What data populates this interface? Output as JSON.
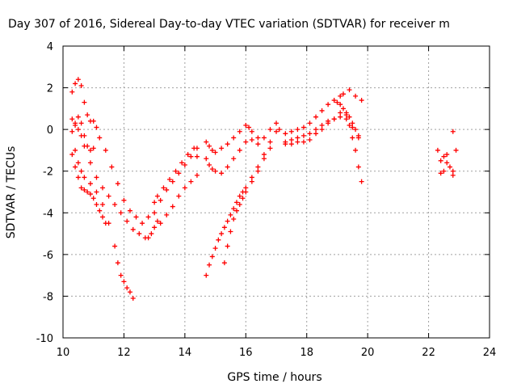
{
  "chart_data": {
    "type": "scatter",
    "title": "Day 307 of 2016, Sidereal Day-to-day VTEC variation (SDTVAR) for receiver m",
    "xlabel": "GPS time / hours",
    "ylabel": "SDTVAR / TECUs",
    "xlim": [
      10,
      24
    ],
    "ylim": [
      -10,
      4
    ],
    "xticks": [
      10,
      12,
      14,
      16,
      18,
      20,
      22,
      24
    ],
    "yticks": [
      -10,
      -8,
      -6,
      -4,
      -2,
      0,
      2,
      4
    ],
    "xtick_labels": [
      "10",
      "12",
      "14",
      "16",
      "18",
      "20",
      "22",
      "24"
    ],
    "ytick_labels": [
      "-10",
      "-8",
      "-6",
      "-4",
      "-2",
      "0",
      "2",
      "4"
    ],
    "grid": true,
    "legend": "none",
    "marker": "+",
    "color": "#ff0000",
    "series": [
      {
        "x": [
          10.3,
          10.4,
          10.5,
          10.6,
          10.7,
          10.8,
          10.9,
          11.0,
          11.1,
          11.2,
          11.4,
          11.6,
          11.8,
          12.0,
          12.2,
          12.4,
          12.6,
          12.8,
          13.0
        ],
        "y": [
          1.8,
          2.2,
          2.4,
          2.1,
          1.3,
          0.7,
          0.4,
          0.4,
          0.1,
          -0.4,
          -1.0,
          -1.8,
          -2.6,
          -3.4,
          -3.9,
          -4.2,
          -4.5,
          -4.2,
          -3.5
        ]
      },
      {
        "x": [
          10.3,
          10.4,
          10.5,
          10.6,
          10.7,
          10.9,
          11.1,
          11.3,
          11.5,
          11.7,
          11.9,
          12.1,
          12.3,
          12.5,
          12.7,
          12.8,
          12.9,
          13.0,
          13.1
        ],
        "y": [
          0.5,
          0.2,
          0.0,
          -0.3,
          -0.8,
          -1.6,
          -2.3,
          -2.8,
          -3.2,
          -3.6,
          -4.0,
          -4.4,
          -4.8,
          -5.0,
          -5.2,
          -5.2,
          -5.0,
          -4.7,
          -4.4
        ]
      },
      {
        "x": [
          10.3,
          10.4,
          10.5,
          10.6,
          10.7,
          10.8,
          10.9,
          11.0,
          11.1,
          11.2,
          11.3,
          11.4
        ],
        "y": [
          -1.2,
          -1.8,
          -2.3,
          -2.8,
          -2.9,
          -3.0,
          -3.1,
          -3.3,
          -3.6,
          -3.9,
          -4.2,
          -4.5
        ]
      },
      {
        "x": [
          10.4,
          10.5,
          10.6,
          10.7,
          10.9,
          11.1,
          11.3,
          11.5,
          11.7,
          11.8,
          11.9,
          12.0,
          12.1,
          12.2,
          12.3
        ],
        "y": [
          -1.0,
          -1.6,
          -2.0,
          -2.3,
          -2.6,
          -3.0,
          -3.6,
          -4.5,
          -5.6,
          -6.4,
          -7.0,
          -7.3,
          -7.6,
          -7.8,
          -8.1
        ]
      },
      {
        "x": [
          10.3,
          10.4,
          10.5,
          10.6,
          10.7,
          10.8,
          10.9,
          11.0
        ],
        "y": [
          -0.1,
          0.3,
          0.6,
          0.3,
          -0.3,
          -0.8,
          -1.0,
          -0.9
        ]
      },
      {
        "x": [
          13.0,
          13.2,
          13.4,
          13.6,
          13.8,
          14.0,
          14.2,
          14.4
        ],
        "y": [
          -4.0,
          -3.4,
          -2.9,
          -2.5,
          -2.1,
          -1.7,
          -1.3,
          -0.9
        ]
      },
      {
        "x": [
          13.1,
          13.3,
          13.5,
          13.7,
          13.9,
          14.1,
          14.3,
          14.4
        ],
        "y": [
          -3.2,
          -2.8,
          -2.4,
          -2.0,
          -1.6,
          -1.2,
          -0.9,
          -1.3
        ]
      },
      {
        "x": [
          13.2,
          13.4,
          13.6,
          13.8,
          14.0,
          14.2,
          14.4
        ],
        "y": [
          -4.5,
          -4.1,
          -3.7,
          -3.2,
          -2.8,
          -2.5,
          -2.2
        ]
      },
      {
        "x": [
          14.7,
          14.8,
          14.9,
          15.0,
          15.1,
          15.2,
          15.3,
          15.4,
          15.5,
          15.6,
          15.7,
          15.8,
          15.9,
          16.0,
          16.2,
          16.4,
          16.6,
          16.8,
          17.0
        ],
        "y": [
          -7.0,
          -6.5,
          -6.1,
          -5.7,
          -5.3,
          -5.0,
          -4.7,
          -4.4,
          -4.1,
          -3.8,
          -3.5,
          -3.2,
          -3.0,
          -2.8,
          -2.3,
          -1.8,
          -1.2,
          -0.6,
          -0.1
        ]
      },
      {
        "x": [
          15.3,
          15.4,
          15.5,
          15.6,
          15.7,
          15.8,
          15.9,
          16.0,
          16.2,
          16.4,
          16.6,
          16.8
        ],
        "y": [
          -6.4,
          -5.6,
          -4.9,
          -4.3,
          -3.9,
          -3.6,
          -3.3,
          -3.0,
          -2.5,
          -2.0,
          -1.4,
          -0.9
        ]
      },
      {
        "x": [
          14.7,
          14.8,
          14.9,
          15.0,
          15.2,
          15.4,
          15.6,
          15.8,
          16.0,
          16.2,
          16.4,
          16.6,
          16.8,
          17.0
        ],
        "y": [
          -1.4,
          -1.7,
          -1.9,
          -2.0,
          -2.1,
          -1.8,
          -1.4,
          -1.0,
          -0.6,
          -0.5,
          -0.7,
          -0.4,
          0.0,
          0.3
        ]
      },
      {
        "x": [
          14.7,
          14.8,
          14.9,
          15.0,
          15.2,
          15.4,
          15.6,
          15.8,
          16.0,
          16.1,
          16.2,
          16.4
        ],
        "y": [
          -0.6,
          -0.8,
          -1.0,
          -1.1,
          -0.9,
          -0.7,
          -0.4,
          -0.1,
          0.2,
          0.1,
          -0.1,
          -0.4
        ]
      },
      {
        "x": [
          17.1,
          17.3,
          17.5,
          17.7,
          17.9,
          18.1,
          18.3,
          18.5,
          18.7,
          18.9,
          19.1,
          19.2,
          19.4,
          19.6,
          19.8
        ],
        "y": [
          0.0,
          -0.2,
          -0.1,
          0.0,
          0.1,
          0.3,
          0.6,
          0.9,
          1.2,
          1.4,
          1.6,
          1.7,
          1.9,
          1.6,
          1.4
        ]
      },
      {
        "x": [
          17.3,
          17.5,
          17.7,
          17.9,
          18.1,
          18.3,
          18.5,
          18.7,
          18.9,
          19.1,
          19.3,
          19.5,
          19.7
        ],
        "y": [
          -0.6,
          -0.5,
          -0.4,
          -0.3,
          -0.2,
          0.0,
          0.2,
          0.4,
          0.5,
          0.6,
          0.5,
          0.1,
          -0.3
        ]
      },
      {
        "x": [
          17.3,
          17.5,
          17.7,
          17.9,
          18.1,
          18.3,
          18.5,
          18.7,
          18.9,
          19.1,
          19.3,
          19.4,
          19.5,
          19.6,
          19.7,
          19.8
        ],
        "y": [
          -0.7,
          -0.7,
          -0.6,
          -0.6,
          -0.5,
          -0.2,
          0.0,
          0.3,
          0.5,
          0.8,
          0.7,
          0.2,
          -0.4,
          -1.0,
          -1.8,
          -2.5
        ]
      },
      {
        "x": [
          19.0,
          19.1,
          19.2,
          19.3,
          19.4,
          19.5,
          19.6,
          19.7
        ],
        "y": [
          1.3,
          1.2,
          1.0,
          0.8,
          0.6,
          0.3,
          0.0,
          -0.4
        ]
      },
      {
        "x": [
          22.3,
          22.4,
          22.5,
          22.6,
          22.7,
          22.8,
          22.9,
          22.8,
          22.5,
          22.4,
          22.6,
          22.8
        ],
        "y": [
          -1.0,
          -1.5,
          -2.0,
          -1.2,
          -1.8,
          -2.2,
          -1.0,
          -0.1,
          -1.3,
          -2.1,
          -1.6,
          -2.0
        ]
      }
    ]
  }
}
